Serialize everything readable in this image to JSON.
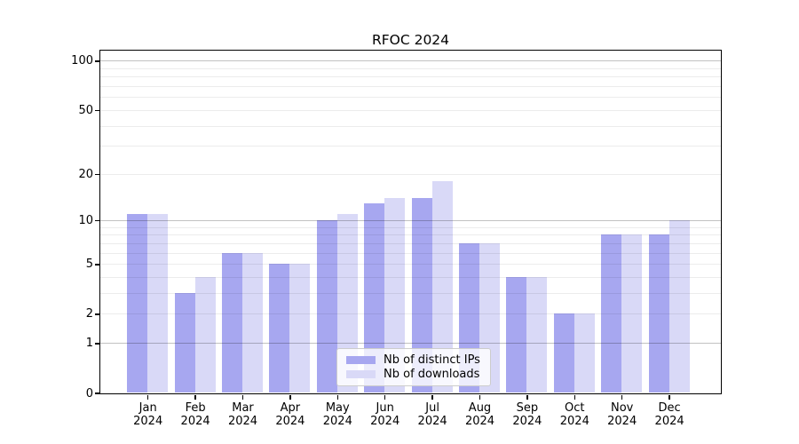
{
  "figure": {
    "title": "RFOC 2024"
  },
  "chart_data": {
    "type": "bar",
    "title": "RFOC 2024",
    "categories": [
      "Jan 2024",
      "Feb 2024",
      "Mar 2024",
      "Apr 2024",
      "May 2024",
      "Jun 2024",
      "Jul 2024",
      "Aug 2024",
      "Sep 2024",
      "Oct 2024",
      "Nov 2024",
      "Dec 2024"
    ],
    "category_line1": [
      "Jan",
      "Feb",
      "Mar",
      "Apr",
      "May",
      "Jun",
      "Jul",
      "Aug",
      "Sep",
      "Oct",
      "Nov",
      "Dec"
    ],
    "category_line2": "2024",
    "series": [
      {
        "name": "Nb of distinct IPs",
        "color": "#a7a7f0",
        "values": [
          11,
          3,
          6,
          5,
          10,
          13,
          14,
          7,
          4,
          2,
          8,
          8
        ]
      },
      {
        "name": "Nb of downloads",
        "color": "#d9d9f7",
        "values": [
          11,
          4,
          6,
          5,
          11,
          14,
          18,
          7,
          4,
          2,
          8,
          10
        ]
      }
    ],
    "xlabel": "",
    "ylabel": "",
    "ylim": [
      0,
      115
    ],
    "y_axis": {
      "scale": "log1p",
      "ticks": [
        0,
        1,
        2,
        5,
        10,
        20,
        50,
        100
      ],
      "tick_labels": [
        "0",
        "1",
        "2",
        "5",
        "10",
        "20",
        "50",
        "100"
      ],
      "major_grid_values": [
        1,
        10,
        100
      ],
      "minor_grid_values": [
        2,
        3,
        4,
        5,
        6,
        7,
        8,
        9,
        20,
        30,
        40,
        50,
        60,
        70,
        80,
        90
      ]
    },
    "grid": true,
    "legend": {
      "location": "lower center inside",
      "entries": [
        "Nb of distinct IPs",
        "Nb of downloads"
      ]
    }
  },
  "colors": {
    "background": "#ffffff",
    "spine": "#000000",
    "major_grid": "#c2c2c2",
    "minor_grid": "#ececec",
    "bar_dark": "#a7a7f0",
    "bar_light": "#d9d9f7"
  }
}
